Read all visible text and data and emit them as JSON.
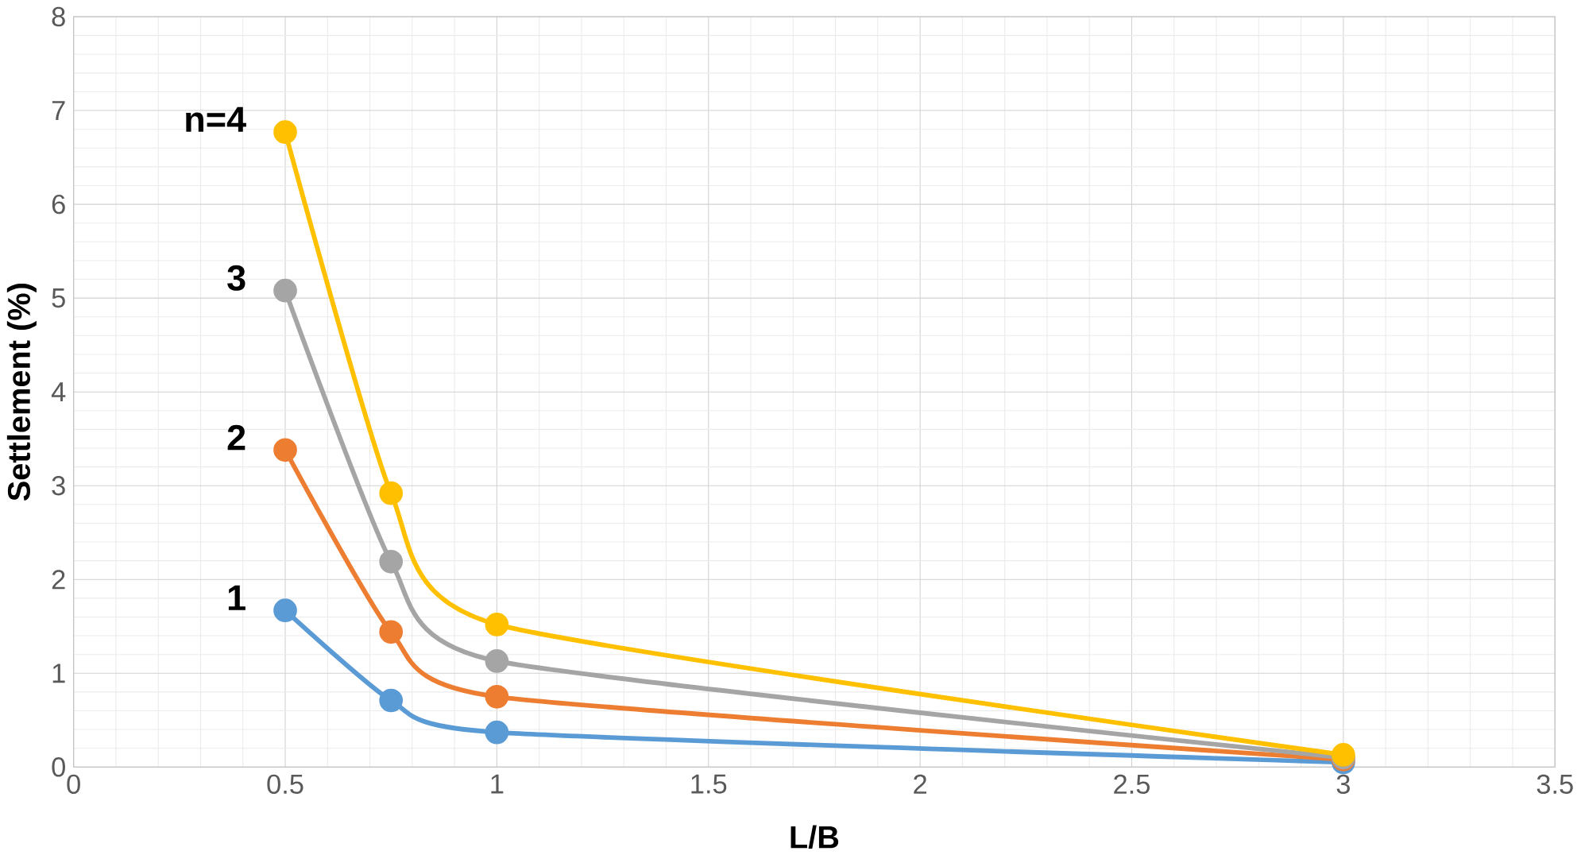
{
  "chart_data": {
    "type": "line",
    "xlabel": "L/B",
    "ylabel": "Settlement (%)",
    "x": [
      0.5,
      0.75,
      1,
      3
    ],
    "series": [
      {
        "name": "1",
        "color": "#5b9bd5",
        "values": [
          1.67,
          0.71,
          0.37,
          0.05
        ]
      },
      {
        "name": "2",
        "color": "#ed7d31",
        "values": [
          3.38,
          1.44,
          0.75,
          0.08
        ]
      },
      {
        "name": "3",
        "color": "#a5a5a5",
        "values": [
          5.08,
          2.19,
          1.13,
          0.1
        ]
      },
      {
        "name": "n=4",
        "color": "#ffc000",
        "values": [
          6.77,
          2.92,
          1.52,
          0.13
        ]
      }
    ],
    "xlim": [
      0,
      3.5
    ],
    "ylim": [
      0,
      8
    ],
    "xticks": [
      0,
      0.5,
      1,
      1.5,
      2,
      2.5,
      3,
      3.5
    ],
    "yticks": [
      0,
      1,
      2,
      3,
      4,
      5,
      6,
      7,
      8
    ],
    "grid": true,
    "marker": "circle",
    "line_style": "solid"
  }
}
